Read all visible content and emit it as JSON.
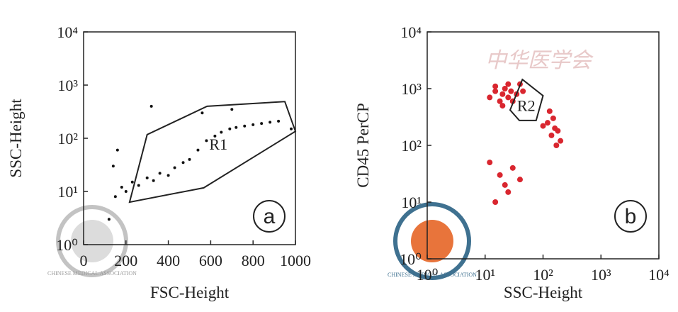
{
  "chart_data": [
    {
      "type": "scatter",
      "panel": "a",
      "xlabel": "FSC-Height",
      "ylabel": "SSC-Height",
      "xscale": "linear",
      "yscale": "log",
      "xlim": [
        0,
        1000
      ],
      "ylim": [
        1,
        10000
      ],
      "xticks": [
        0,
        200,
        400,
        600,
        800,
        1000
      ],
      "yticks": [
        {
          "value": 1,
          "label": "10⁰"
        },
        {
          "value": 10,
          "label": "10¹"
        },
        {
          "value": 100,
          "label": "10²"
        },
        {
          "value": 1000,
          "label": "10³"
        },
        {
          "value": 10000,
          "label": "10⁴"
        }
      ],
      "series": [
        {
          "color": "#111111",
          "x": [
            150,
            180,
            200,
            230,
            260,
            300,
            330,
            360,
            400,
            430,
            470,
            500,
            540,
            580,
            620,
            650,
            690,
            720,
            760,
            800,
            840,
            880,
            920,
            160,
            120,
            140,
            560,
            700,
            980,
            320
          ],
          "values": [
            8,
            12,
            10,
            15,
            13,
            18,
            16,
            22,
            20,
            28,
            35,
            40,
            60,
            90,
            110,
            130,
            150,
            160,
            170,
            180,
            190,
            200,
            210,
            60,
            3,
            30,
            300,
            350,
            150,
            400
          ]
        }
      ],
      "gate": {
        "label": "R1",
        "x": [
          217,
          300,
          583,
          950,
          1000,
          567
        ],
        "y": [
          6.3,
          117,
          400,
          490,
          135,
          11.7
        ]
      }
    },
    {
      "type": "scatter",
      "panel": "b",
      "xlabel": "SSC-Height",
      "ylabel": "CD45 PerCP",
      "xscale": "log",
      "yscale": "log",
      "xlim": [
        1,
        10000
      ],
      "ylim": [
        1,
        10000
      ],
      "xticks": [
        {
          "value": 1,
          "label": "10⁰"
        },
        {
          "value": 10,
          "label": "10¹"
        },
        {
          "value": 100,
          "label": "10²"
        },
        {
          "value": 1000,
          "label": "10³"
        },
        {
          "value": 10000,
          "label": "10⁴"
        }
      ],
      "yticks": [
        {
          "value": 1,
          "label": "10⁰"
        },
        {
          "value": 10,
          "label": "10¹"
        },
        {
          "value": 100,
          "label": "10²"
        },
        {
          "value": 1000,
          "label": "10³"
        },
        {
          "value": 10000,
          "label": "10⁴"
        }
      ],
      "series": [
        {
          "color": "#d9262f",
          "x": [
            12,
            15,
            18,
            20,
            22,
            25,
            28,
            30,
            35,
            40,
            45,
            15,
            20,
            25,
            120,
            140,
            160,
            180,
            200,
            150,
            130,
            170,
            100,
            18,
            22,
            25,
            30,
            40,
            15,
            12
          ],
          "values": [
            700,
            900,
            600,
            800,
            1000,
            700,
            900,
            600,
            800,
            1200,
            900,
            1100,
            500,
            1200,
            250,
            150,
            200,
            180,
            120,
            300,
            400,
            100,
            220,
            30,
            20,
            15,
            40,
            25,
            10,
            50
          ]
        }
      ],
      "gate": {
        "label": "R2",
        "x": [
          44,
          100,
          76,
          39,
          27
        ],
        "y": [
          1450,
          750,
          275,
          275,
          420
        ]
      }
    }
  ],
  "watermark": "中华医学会",
  "logo_text": "CHINESE MEDICAL ASSOCIATION"
}
